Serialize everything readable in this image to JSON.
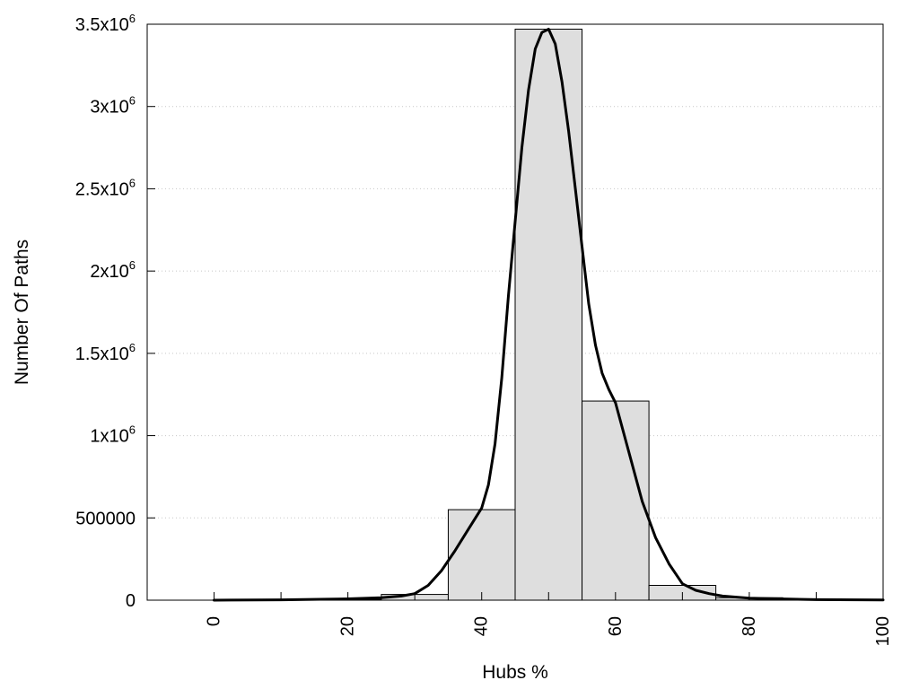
{
  "chart_data": {
    "type": "bar",
    "title": "",
    "xlabel": "Hubs %",
    "ylabel": "Number Of Paths",
    "xlim": [
      -10,
      100
    ],
    "ylim": [
      0,
      3500000
    ],
    "grid": {
      "y": true,
      "x": false,
      "style": "dotted"
    },
    "x_ticks": [
      {
        "value": 0,
        "label": "0"
      },
      {
        "value": 20,
        "label": "20"
      },
      {
        "value": 40,
        "label": "40"
      },
      {
        "value": 60,
        "label": "60"
      },
      {
        "value": 80,
        "label": "80"
      },
      {
        "value": 100,
        "label": "100"
      }
    ],
    "x_minor_ticks": [
      10,
      30,
      50,
      70,
      90
    ],
    "y_ticks": [
      {
        "value": 0,
        "base": "0",
        "exp": ""
      },
      {
        "value": 500000,
        "base": "500000",
        "exp": ""
      },
      {
        "value": 1000000,
        "base": "1x10",
        "exp": "6"
      },
      {
        "value": 1500000,
        "base": "1.5x10",
        "exp": "6"
      },
      {
        "value": 2000000,
        "base": "2x10",
        "exp": "6"
      },
      {
        "value": 2500000,
        "base": "2.5x10",
        "exp": "6"
      },
      {
        "value": 3000000,
        "base": "3x10",
        "exp": "6"
      },
      {
        "value": 3500000,
        "base": "3.5x10",
        "exp": "6"
      }
    ],
    "bars": [
      {
        "x0": 0,
        "x1": 5,
        "value": 2000
      },
      {
        "x0": 5,
        "x1": 15,
        "value": 3000
      },
      {
        "x0": 15,
        "x1": 25,
        "value": 5000
      },
      {
        "x0": 25,
        "x1": 35,
        "value": 35000
      },
      {
        "x0": 35,
        "x1": 45,
        "value": 550000
      },
      {
        "x0": 45,
        "x1": 55,
        "value": 3470000
      },
      {
        "x0": 55,
        "x1": 65,
        "value": 1210000
      },
      {
        "x0": 65,
        "x1": 75,
        "value": 90000
      },
      {
        "x0": 75,
        "x1": 85,
        "value": 15000
      },
      {
        "x0": 85,
        "x1": 95,
        "value": 4000
      },
      {
        "x0": 95,
        "x1": 100,
        "value": 2000
      }
    ],
    "curve": {
      "x": [
        0,
        10,
        20,
        25,
        28,
        30,
        32,
        34,
        36,
        38,
        40,
        41,
        42,
        43,
        44,
        45,
        46,
        47,
        48,
        49,
        50,
        51,
        52,
        53,
        54,
        55,
        56,
        57,
        58,
        59,
        60,
        62,
        64,
        66,
        68,
        70,
        72,
        74,
        76,
        80,
        90,
        100
      ],
      "y": [
        0,
        2000,
        8000,
        15000,
        25000,
        40000,
        90000,
        180000,
        300000,
        430000,
        560000,
        700000,
        950000,
        1350000,
        1850000,
        2300000,
        2750000,
        3100000,
        3350000,
        3450000,
        3470000,
        3380000,
        3150000,
        2850000,
        2500000,
        2150000,
        1800000,
        1550000,
        1380000,
        1280000,
        1200000,
        900000,
        600000,
        380000,
        220000,
        100000,
        60000,
        40000,
        25000,
        12000,
        3000,
        1000
      ]
    }
  }
}
